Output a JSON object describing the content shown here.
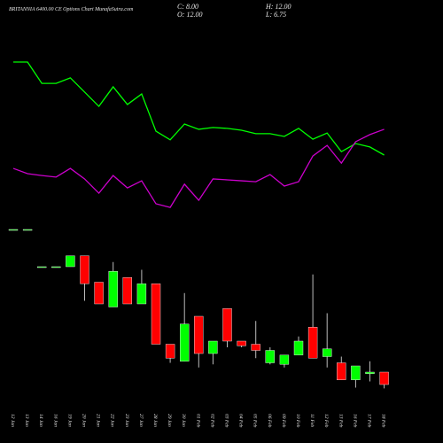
{
  "chart_data": {
    "type": "candlestick",
    "title": "BRITANNIA 6400.00 CE Options Chart MunafaSutra.com",
    "ohlc_labels": {
      "close": "C: 8.00",
      "open": "O: 12.00",
      "high": "H: 12.00",
      "low": "L: 6.75"
    },
    "categories": [
      "12 Jan",
      "13 Jan",
      "14 Jan",
      "16 Jan",
      "19 Jan",
      "20 Jan",
      "21 Jan",
      "22 Jan",
      "23 Jan",
      "27 Jan",
      "28 Jan",
      "29 Jan",
      "30 Jan",
      "01 Feb",
      "02 Feb",
      "03 Feb",
      "04 Feb",
      "05 Feb",
      "06 Feb",
      "09 Feb",
      "10 Feb",
      "11 Feb",
      "12 Feb",
      "13 Feb",
      "16 Feb",
      "17 Feb",
      "18 Feb"
    ],
    "open": [
      58,
      58,
      46,
      46,
      46,
      49.5,
      41,
      33,
      42.5,
      34,
      40.5,
      21,
      15.5,
      30,
      18,
      32.5,
      22,
      21,
      15,
      14.5,
      17.5,
      26.5,
      17,
      15,
      9.5,
      11.5,
      12
    ],
    "high": [
      58,
      58,
      46,
      46,
      49.5,
      49.5,
      41,
      47.5,
      42.5,
      45,
      40.5,
      21,
      37.5,
      30,
      22,
      32.5,
      22,
      28.5,
      20,
      17.5,
      23.5,
      43.5,
      31,
      17,
      14,
      15.5,
      12
    ],
    "low": [
      58,
      58,
      46,
      46,
      46,
      35,
      34,
      33,
      34,
      34,
      21,
      15,
      15.5,
      13.5,
      14.5,
      20,
      20,
      16.5,
      14.5,
      13.5,
      17.5,
      16.5,
      13.5,
      9.5,
      7,
      9,
      6.75
    ],
    "close": [
      58,
      58,
      46,
      46,
      49.5,
      40.5,
      34,
      44.5,
      34,
      40.5,
      21,
      16.5,
      27.5,
      18,
      22,
      22,
      20.5,
      19,
      19,
      17.5,
      22,
      16.5,
      19.5,
      9.5,
      14,
      12,
      8
    ],
    "up_color": "#00ff00",
    "down_color": "#ff0000",
    "lines": [
      {
        "color": "#00ff00",
        "values": [
          112,
          112,
          105.1,
          105.1,
          106.9,
          102.3,
          97.7,
          104,
          98.3,
          101.7,
          89.7,
          86.9,
          92,
          90.3,
          90.9,
          90.6,
          90,
          88.9,
          88.9,
          88,
          90.6,
          87.1,
          89.1,
          83.1,
          85.7,
          84.6,
          82
        ]
      },
      {
        "color": "#cc00cc",
        "values": [
          77.7,
          76,
          75.4,
          74.9,
          77.7,
          74.3,
          69.7,
          75.4,
          71.4,
          73.7,
          66.3,
          65.1,
          72.6,
          67.4,
          74.3,
          74,
          73.7,
          73.4,
          75.7,
          72,
          73.4,
          81.7,
          85.1,
          79.4,
          86.3,
          88.6,
          90.3
        ]
      }
    ],
    "ylim": [
      0,
      132
    ]
  }
}
